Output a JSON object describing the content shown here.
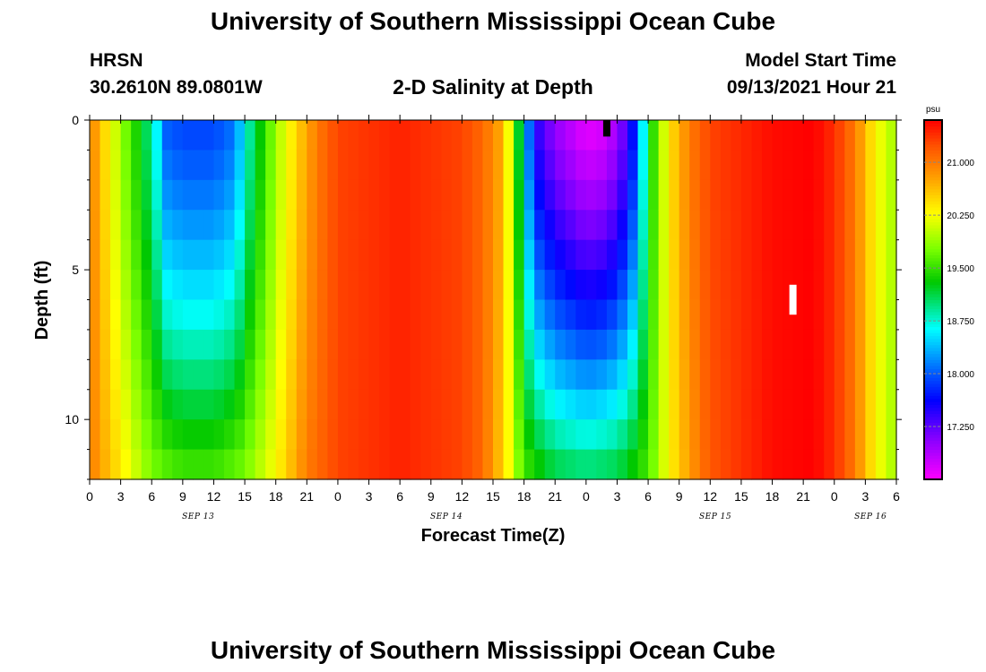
{
  "header": {
    "title_top": "University of Southern Mississippi Ocean Cube",
    "title_bottom": "University of Southern Mississippi Ocean Cube",
    "station": "HRSN",
    "coords": "30.2610N  89.0801W",
    "plot_title": "2-D Salinity at Depth",
    "model_start_label": "Model Start Time",
    "model_start_value": "09/13/2021 Hour 21"
  },
  "chart_data": {
    "type": "heatmap",
    "title": "2-D Salinity at Depth",
    "xlabel": "Forecast Time(Z)",
    "ylabel": "Depth (ft)",
    "x_start_hour": 0,
    "x_end_hour": 78,
    "x_step_hours": 1,
    "x_tick_labels": [
      "0",
      "3",
      "6",
      "9",
      "12",
      "15",
      "18",
      "21",
      "0",
      "3",
      "6",
      "9",
      "12",
      "15",
      "18",
      "21",
      "0",
      "3",
      "6",
      "9",
      "12",
      "15",
      "18",
      "21",
      "0",
      "3",
      "6"
    ],
    "date_labels": [
      {
        "label": "SEP 13",
        "hour": 10.5
      },
      {
        "label": "SEP 14",
        "hour": 34.5
      },
      {
        "label": "SEP 15",
        "hour": 60.5
      },
      {
        "label": "SEP 16",
        "hour": 75.5
      }
    ],
    "ylim": [
      0,
      12
    ],
    "y_ticks": [
      0,
      5,
      10
    ],
    "depth_levels_ft": [
      0.5,
      1.5,
      2.5,
      3.5,
      4.5,
      5.5,
      6.5,
      7.5,
      8.5,
      9.5,
      10.5,
      11.5
    ],
    "colorbar": {
      "unit": "psu",
      "min": 16.5,
      "max": 21.6,
      "tick_labels": [
        "21.000",
        "20.250",
        "19.500",
        "18.750",
        "18.000",
        "17.250"
      ],
      "tick_values": [
        21.0,
        20.25,
        19.5,
        18.75,
        18.0,
        17.25
      ]
    },
    "surface_profile": [
      {
        "hour": 0,
        "value": 21.0
      },
      {
        "hour": 3,
        "value": 19.9
      },
      {
        "hour": 6,
        "value": 18.9
      },
      {
        "hour": 7.5,
        "value": 18.0
      },
      {
        "hour": 9,
        "value": 17.9
      },
      {
        "hour": 12,
        "value": 17.9
      },
      {
        "hour": 14,
        "value": 18.1
      },
      {
        "hour": 15.5,
        "value": 18.9
      },
      {
        "hour": 18,
        "value": 19.9
      },
      {
        "hour": 20,
        "value": 20.5
      },
      {
        "hour": 22,
        "value": 21.0
      },
      {
        "hour": 24,
        "value": 21.3
      },
      {
        "hour": 30,
        "value": 21.45
      },
      {
        "hour": 36,
        "value": 21.3
      },
      {
        "hour": 38,
        "value": 21.1
      },
      {
        "hour": 40,
        "value": 20.7
      },
      {
        "hour": 41,
        "value": 19.8
      },
      {
        "hour": 42,
        "value": 18.6
      },
      {
        "hour": 43,
        "value": 17.5
      },
      {
        "hour": 45,
        "value": 17.0
      },
      {
        "hour": 48,
        "value": 16.6
      },
      {
        "hour": 50,
        "value": 16.7
      },
      {
        "hour": 52,
        "value": 17.3
      },
      {
        "hour": 53,
        "value": 18.0
      },
      {
        "hour": 54,
        "value": 19.2
      },
      {
        "hour": 56,
        "value": 20.4
      },
      {
        "hour": 58,
        "value": 21.0
      },
      {
        "hour": 60,
        "value": 21.3
      },
      {
        "hour": 66,
        "value": 21.55
      },
      {
        "hour": 70,
        "value": 21.6
      },
      {
        "hour": 72,
        "value": 21.4
      },
      {
        "hour": 74,
        "value": 21.0
      },
      {
        "hour": 76,
        "value": 20.3
      },
      {
        "hour": 78,
        "value": 19.9
      }
    ],
    "bottom_profile": [
      {
        "hour": 0,
        "value": 21.0
      },
      {
        "hour": 3,
        "value": 20.4
      },
      {
        "hour": 6,
        "value": 19.8
      },
      {
        "hour": 9,
        "value": 19.6
      },
      {
        "hour": 12,
        "value": 19.6
      },
      {
        "hour": 15,
        "value": 19.8
      },
      {
        "hour": 18,
        "value": 20.3
      },
      {
        "hour": 21,
        "value": 21.0
      },
      {
        "hour": 24,
        "value": 21.3
      },
      {
        "hour": 30,
        "value": 21.45
      },
      {
        "hour": 36,
        "value": 21.3
      },
      {
        "hour": 38,
        "value": 21.1
      },
      {
        "hour": 40,
        "value": 20.5
      },
      {
        "hour": 42,
        "value": 19.6
      },
      {
        "hour": 45,
        "value": 19.2
      },
      {
        "hour": 48,
        "value": 19.1
      },
      {
        "hour": 51,
        "value": 19.2
      },
      {
        "hour": 54,
        "value": 19.6
      },
      {
        "hour": 56,
        "value": 20.3
      },
      {
        "hour": 58,
        "value": 20.8
      },
      {
        "hour": 60,
        "value": 21.2
      },
      {
        "hour": 66,
        "value": 21.55
      },
      {
        "hour": 70,
        "value": 21.6
      },
      {
        "hour": 72,
        "value": 21.4
      },
      {
        "hour": 74,
        "value": 21.0
      },
      {
        "hour": 76,
        "value": 20.3
      },
      {
        "hour": 78,
        "value": 19.9
      }
    ],
    "mix_depth_ft": 12,
    "mix_power": 1.3,
    "markers": [
      {
        "type": "black-bar",
        "hour": 50,
        "depth_top": 0,
        "depth_bottom": 0.55
      },
      {
        "type": "white-bar",
        "hour": 68,
        "depth_top": 5.5,
        "depth_bottom": 6.5
      }
    ]
  }
}
